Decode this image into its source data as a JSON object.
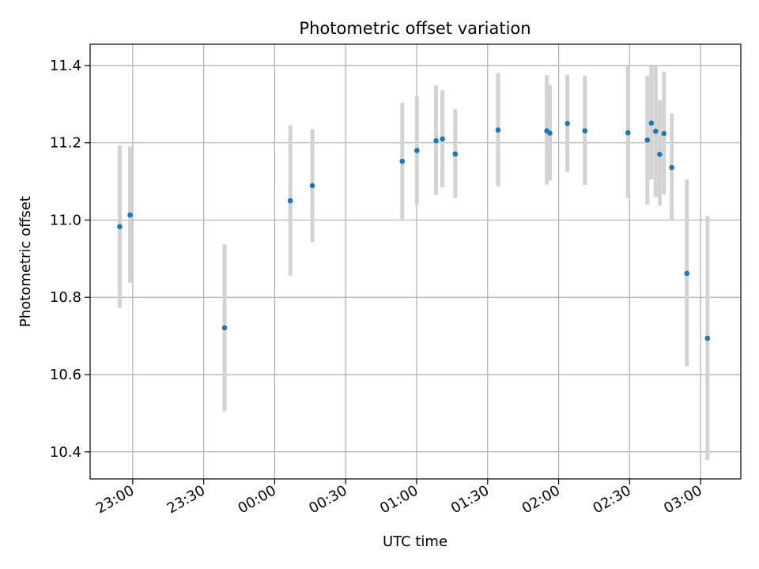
{
  "chart_data": {
    "type": "scatter",
    "title": "Photometric offset variation",
    "xlabel": "UTC time",
    "ylabel": "Photometric offset",
    "grid": true,
    "colors": {
      "marker": "#1f77b4",
      "errorbar": "#d3d3d3",
      "grid": "#b0b0b0",
      "axis": "#000000"
    },
    "xlim": [
      "22:42",
      "03:17"
    ],
    "ylim": [
      10.33,
      11.455
    ],
    "x_ticks": [
      "23:00",
      "23:30",
      "00:00",
      "00:30",
      "01:00",
      "01:30",
      "02:00",
      "02:30",
      "03:00"
    ],
    "y_ticks": [
      "10.4",
      "10.6",
      "10.8",
      "11.0",
      "11.2",
      "11.4"
    ],
    "points": [
      {
        "x": "22:54.5",
        "y": 10.983,
        "yerr_low": 10.773,
        "yerr_high": 11.193
      },
      {
        "x": "22:58.9",
        "y": 11.013,
        "yerr_low": 10.838,
        "yerr_high": 11.19
      },
      {
        "x": "23:38.8",
        "y": 10.721,
        "yerr_low": 10.505,
        "yerr_high": 10.937
      },
      {
        "x": "00:06.6",
        "y": 11.05,
        "yerr_low": 10.856,
        "yerr_high": 11.245
      },
      {
        "x": "00:15.9",
        "y": 11.089,
        "yerr_low": 10.943,
        "yerr_high": 11.235
      },
      {
        "x": "00:53.9",
        "y": 11.152,
        "yerr_low": 11.003,
        "yerr_high": 11.303
      },
      {
        "x": "01:00.1",
        "y": 11.18,
        "yerr_low": 11.04,
        "yerr_high": 11.32
      },
      {
        "x": "01:08.2",
        "y": 11.205,
        "yerr_low": 11.065,
        "yerr_high": 11.348
      },
      {
        "x": "01:10.9",
        "y": 11.21,
        "yerr_low": 11.085,
        "yerr_high": 11.336
      },
      {
        "x": "01:16.3",
        "y": 11.171,
        "yerr_low": 11.057,
        "yerr_high": 11.287
      },
      {
        "x": "01:34.4",
        "y": 11.233,
        "yerr_low": 11.087,
        "yerr_high": 11.381
      },
      {
        "x": "01:55.0",
        "y": 11.231,
        "yerr_low": 11.092,
        "yerr_high": 11.375
      },
      {
        "x": "01:56.3",
        "y": 11.225,
        "yerr_low": 11.102,
        "yerr_high": 11.35
      },
      {
        "x": "02:03.7",
        "y": 11.25,
        "yerr_low": 11.124,
        "yerr_high": 11.376
      },
      {
        "x": "02:11.1",
        "y": 11.231,
        "yerr_low": 11.091,
        "yerr_high": 11.374
      },
      {
        "x": "02:29.3",
        "y": 11.226,
        "yerr_low": 11.057,
        "yerr_high": 11.398
      },
      {
        "x": "02:37.5",
        "y": 11.207,
        "yerr_low": 11.04,
        "yerr_high": 11.374
      },
      {
        "x": "02:39.2",
        "y": 11.251,
        "yerr_low": 11.105,
        "yerr_high": 11.398
      },
      {
        "x": "02:41.0",
        "y": 11.23,
        "yerr_low": 11.06,
        "yerr_high": 11.398
      },
      {
        "x": "02:42.7",
        "y": 11.17,
        "yerr_low": 11.037,
        "yerr_high": 11.31
      },
      {
        "x": "02:44.5",
        "y": 11.224,
        "yerr_low": 11.066,
        "yerr_high": 11.384
      },
      {
        "x": "02:47.8",
        "y": 11.136,
        "yerr_low": 11.0,
        "yerr_high": 11.276
      },
      {
        "x": "02:54.2",
        "y": 10.862,
        "yerr_low": 10.621,
        "yerr_high": 11.105
      },
      {
        "x": "03:02.9",
        "y": 10.694,
        "yerr_low": 10.379,
        "yerr_high": 11.01
      }
    ]
  }
}
